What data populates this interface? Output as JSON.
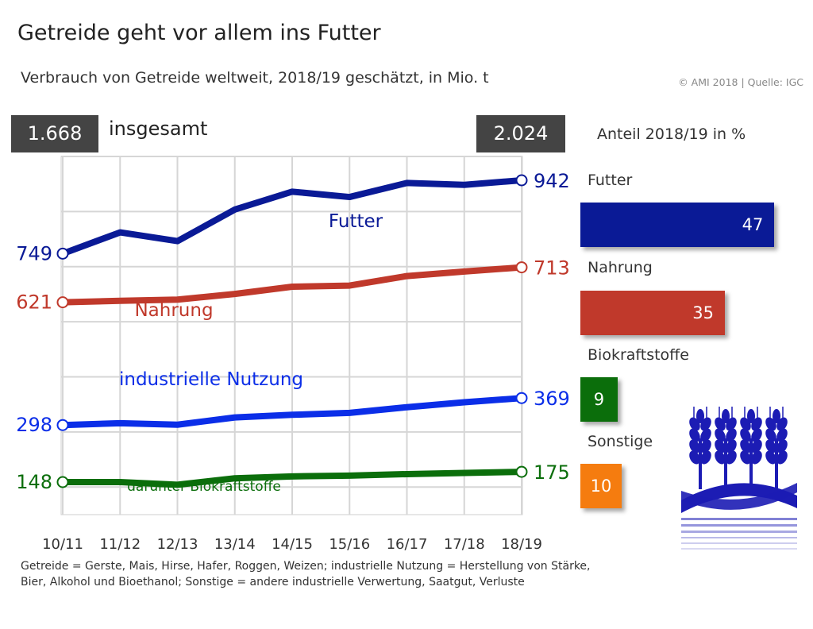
{
  "header": {
    "title": "Getreide geht vor allem ins Futter",
    "subtitle": "Verbrauch von Getreide weltweit, 2018/19 geschätzt, in Mio. t",
    "copyright": "© AMI 2018 | Quelle: IGC"
  },
  "totals": {
    "first": "1.668",
    "last": "2.024",
    "label": "insgesamt"
  },
  "share": {
    "title": "Anteil 2018/19 in %",
    "items": [
      {
        "label": "Futter",
        "value": 47,
        "color": "#0a1a96"
      },
      {
        "label": "Nahrung",
        "value": 35,
        "color": "#c0392b"
      },
      {
        "label": "Biokraftstoffe",
        "value": 9,
        "color": "#0b6e0b"
      },
      {
        "label": "Sonstige",
        "value": 10,
        "color": "#f57c0f"
      }
    ]
  },
  "chart_data": {
    "type": "line",
    "categories": [
      "10/11",
      "11/12",
      "12/13",
      "13/14",
      "14/15",
      "15/16",
      "16/17",
      "17/18",
      "18/19"
    ],
    "series": [
      {
        "name": "Futter",
        "color": "#0a1a96",
        "values": [
          749,
          805,
          782,
          865,
          912,
          898,
          935,
          930,
          942
        ],
        "start_label": "749",
        "end_label": "942"
      },
      {
        "name": "Nahrung",
        "color": "#c0392b",
        "values": [
          621,
          625,
          628,
          643,
          662,
          665,
          690,
          702,
          713
        ],
        "start_label": "621",
        "end_label": "713"
      },
      {
        "name": "industrielle Nutzung",
        "color": "#0b2ee8",
        "values": [
          298,
          303,
          299,
          318,
          325,
          330,
          345,
          358,
          369
        ],
        "start_label": "298",
        "end_label": "369"
      },
      {
        "name": "darunter Biokraftstoffe",
        "color": "#0b6e0b",
        "values": [
          148,
          148,
          141,
          158,
          163,
          165,
          169,
          172,
          175
        ],
        "start_label": "148",
        "end_label": "175"
      }
    ],
    "ylim": [
      0,
      1000
    ],
    "grid": true
  },
  "footnote": {
    "line1": "Getreide = Gerste, Mais, Hirse, Hafer, Roggen, Weizen; industrielle Nutzung = Herstellung von Stärke,",
    "line2": "Bier, Alkohol und Bioethanol; Sonstige = andere industrielle Verwertung, Saatgut, Verluste"
  },
  "logo": {
    "icon": "wheat-icon",
    "color": "#1c1cb4"
  }
}
